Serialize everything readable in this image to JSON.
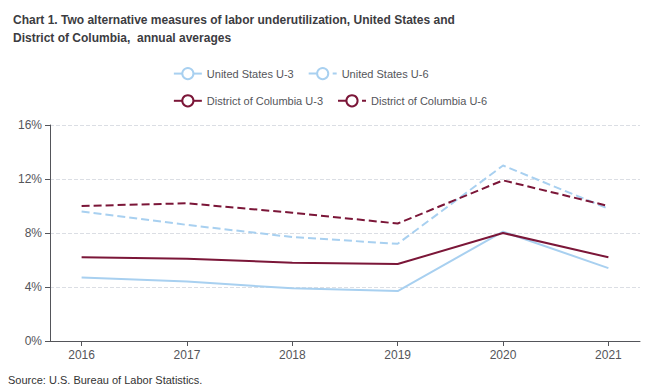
{
  "chart_data": {
    "type": "line",
    "title": "Chart 1. Two alternative measures of labor underutilization, United States and\nDistrict of Columbia,  annual averages",
    "annotations": [
      "Source: U.S. Bureau of Labor Statistics."
    ],
    "x": [
      2016,
      2017,
      2018,
      2019,
      2020,
      2021
    ],
    "series": [
      {
        "name": "United States U-3",
        "color": "#a8d0f0",
        "line_style": "solid",
        "values": [
          4.7,
          4.4,
          3.9,
          3.7,
          8.1,
          5.4
        ]
      },
      {
        "name": "United States U-6",
        "color": "#a8d0f0",
        "line_style": "dashed",
        "values": [
          9.6,
          8.6,
          7.7,
          7.2,
          13.0,
          9.8
        ]
      },
      {
        "name": "District of Columbia U-3",
        "color": "#7b1638",
        "line_style": "solid",
        "values": [
          6.2,
          6.1,
          5.8,
          5.7,
          8.0,
          6.2
        ]
      },
      {
        "name": "District of Columbia U-6",
        "color": "#7b1638",
        "line_style": "dashed",
        "values": [
          10.0,
          10.2,
          9.5,
          8.7,
          11.9,
          10.0
        ]
      }
    ],
    "xlim": [
      2015.7,
      2021.3
    ],
    "xticks": [
      2016,
      2017,
      2018,
      2019,
      2020,
      2021
    ],
    "ylim": [
      0,
      16
    ],
    "yticks": [
      {
        "value": 0,
        "label": "0%"
      },
      {
        "value": 4,
        "label": "4%"
      },
      {
        "value": 8,
        "label": "8%"
      },
      {
        "value": 12,
        "label": "12%"
      },
      {
        "value": 16,
        "label": "16%"
      }
    ],
    "grid": true,
    "legend": "top"
  }
}
